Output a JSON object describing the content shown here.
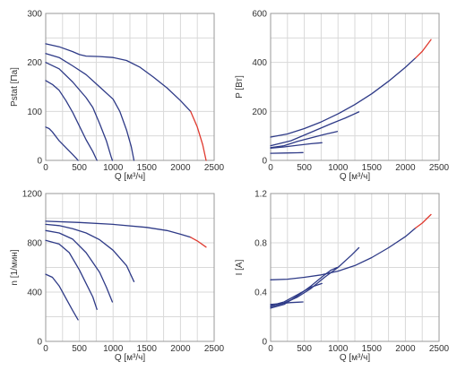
{
  "colors": {
    "curve": "#2e3a87",
    "limit": "#e03a2f",
    "grid": "#d9d9d9",
    "frame": "#9a9a9a"
  },
  "chart_data": [
    {
      "type": "line",
      "xlabel": "Q [м³/ч]",
      "ylabel": "Pstat [Па]",
      "xlim": [
        0,
        2500
      ],
      "ylim": [
        0,
        300
      ],
      "xticks": [
        0,
        500,
        1000,
        1500,
        2000,
        2500
      ],
      "yticks": [
        0,
        100,
        200,
        300
      ],
      "grid": true,
      "series": [
        {
          "points": [
            [
              0,
              238
            ],
            [
              200,
              232
            ],
            [
              400,
              222
            ],
            [
              500,
              216
            ],
            [
              600,
              213
            ],
            [
              800,
              212
            ],
            [
              1000,
              210
            ],
            [
              1200,
              204
            ],
            [
              1400,
              190
            ],
            [
              1600,
              170
            ],
            [
              1800,
              148
            ],
            [
              2000,
              122
            ],
            [
              2150,
              100
            ]
          ],
          "limit": [
            [
              2150,
              100
            ],
            [
              2250,
              68
            ],
            [
              2330,
              32
            ],
            [
              2380,
              0
            ]
          ]
        },
        {
          "points": [
            [
              0,
              218
            ],
            [
              200,
              210
            ],
            [
              400,
              193
            ],
            [
              600,
              175
            ],
            [
              800,
              150
            ],
            [
              1000,
              125
            ],
            [
              1100,
              100
            ],
            [
              1200,
              62
            ],
            [
              1270,
              28
            ],
            [
              1310,
              0
            ]
          ]
        },
        {
          "points": [
            [
              0,
              200
            ],
            [
              200,
              187
            ],
            [
              400,
              160
            ],
            [
              600,
              128
            ],
            [
              700,
              108
            ],
            [
              800,
              75
            ],
            [
              900,
              40
            ],
            [
              970,
              8
            ],
            [
              990,
              0
            ]
          ]
        },
        {
          "points": [
            [
              0,
              163
            ],
            [
              100,
              155
            ],
            [
              200,
              143
            ],
            [
              300,
              122
            ],
            [
              400,
              98
            ],
            [
              500,
              70
            ],
            [
              600,
              42
            ],
            [
              700,
              18
            ],
            [
              760,
              0
            ]
          ]
        },
        {
          "points": [
            [
              0,
              68
            ],
            [
              50,
              65
            ],
            [
              100,
              58
            ],
            [
              200,
              40
            ],
            [
              300,
              26
            ],
            [
              400,
              12
            ],
            [
              450,
              5
            ],
            [
              480,
              0
            ]
          ]
        }
      ]
    },
    {
      "type": "line",
      "xlabel": "Q [м³/ч]",
      "ylabel": "P [Вт]",
      "xlim": [
        0,
        2500
      ],
      "ylim": [
        0,
        600
      ],
      "xticks": [
        0,
        500,
        1000,
        1500,
        2000,
        2500
      ],
      "yticks": [
        0,
        200,
        400,
        600
      ],
      "grid": true,
      "series": [
        {
          "points": [
            [
              0,
              95
            ],
            [
              250,
              108
            ],
            [
              500,
              130
            ],
            [
              750,
              157
            ],
            [
              1000,
              190
            ],
            [
              1250,
              228
            ],
            [
              1500,
              272
            ],
            [
              1750,
              323
            ],
            [
              2000,
              380
            ],
            [
              2150,
              418
            ]
          ],
          "limit": [
            [
              2150,
              418
            ],
            [
              2250,
              445
            ],
            [
              2380,
              493
            ]
          ]
        },
        {
          "points": [
            [
              0,
              60
            ],
            [
              300,
              80
            ],
            [
              600,
              115
            ],
            [
              900,
              150
            ],
            [
              1100,
              172
            ],
            [
              1310,
              198
            ]
          ]
        },
        {
          "points": [
            [
              0,
              52
            ],
            [
              200,
              60
            ],
            [
              400,
              78
            ],
            [
              600,
              92
            ],
            [
              800,
              106
            ],
            [
              990,
              118
            ]
          ]
        },
        {
          "points": [
            [
              0,
              50
            ],
            [
              200,
              55
            ],
            [
              400,
              62
            ],
            [
              600,
              68
            ],
            [
              760,
              72
            ]
          ]
        },
        {
          "points": [
            [
              0,
              29
            ],
            [
              200,
              30
            ],
            [
              400,
              31
            ],
            [
              480,
              32
            ]
          ]
        }
      ]
    },
    {
      "type": "line",
      "xlabel": "Q [м³/ч]",
      "ylabel": "n [1/мин]",
      "xlim": [
        0,
        2500
      ],
      "ylim": [
        0,
        1200
      ],
      "xticks": [
        0,
        500,
        1000,
        1500,
        2000,
        2500
      ],
      "yticks": [
        0,
        400,
        800,
        1200
      ],
      "grid": true,
      "series": [
        {
          "points": [
            [
              0,
              975
            ],
            [
              500,
              965
            ],
            [
              1000,
              950
            ],
            [
              1500,
              925
            ],
            [
              1800,
              900
            ],
            [
              2000,
              870
            ],
            [
              2150,
              845
            ]
          ],
          "limit": [
            [
              2150,
              845
            ],
            [
              2250,
              815
            ],
            [
              2380,
              765
            ]
          ]
        },
        {
          "points": [
            [
              0,
              950
            ],
            [
              200,
              940
            ],
            [
              400,
              915
            ],
            [
              600,
              880
            ],
            [
              800,
              825
            ],
            [
              1000,
              740
            ],
            [
              1200,
              615
            ],
            [
              1310,
              485
            ]
          ]
        },
        {
          "points": [
            [
              0,
              900
            ],
            [
              200,
              880
            ],
            [
              400,
              830
            ],
            [
              600,
              720
            ],
            [
              800,
              560
            ],
            [
              900,
              440
            ],
            [
              990,
              320
            ]
          ]
        },
        {
          "points": [
            [
              0,
              820
            ],
            [
              200,
              790
            ],
            [
              350,
              720
            ],
            [
              500,
              580
            ],
            [
              600,
              470
            ],
            [
              700,
              360
            ],
            [
              760,
              260
            ]
          ]
        },
        {
          "points": [
            [
              0,
              545
            ],
            [
              100,
              520
            ],
            [
              200,
              450
            ],
            [
              300,
              350
            ],
            [
              400,
              250
            ],
            [
              480,
              175
            ]
          ]
        }
      ]
    },
    {
      "type": "line",
      "xlabel": "Q [м³/ч]",
      "ylabel": "I [A]",
      "xlim": [
        0,
        2500
      ],
      "ylim": [
        0,
        1.2
      ],
      "xticks": [
        0,
        500,
        1000,
        1500,
        2000,
        2500
      ],
      "yticks": [
        "0",
        "0.4",
        "0.8",
        "1.2"
      ],
      "grid": true,
      "series": [
        {
          "points": [
            [
              0,
              0.5
            ],
            [
              250,
              0.505
            ],
            [
              500,
              0.52
            ],
            [
              750,
              0.54
            ],
            [
              1000,
              0.57
            ],
            [
              1250,
              0.615
            ],
            [
              1500,
              0.68
            ],
            [
              1750,
              0.76
            ],
            [
              2000,
              0.85
            ],
            [
              2150,
              0.92
            ]
          ],
          "limit": [
            [
              2150,
              0.92
            ],
            [
              2250,
              0.96
            ],
            [
              2380,
              1.03
            ]
          ]
        },
        {
          "points": [
            [
              0,
              0.28
            ],
            [
              200,
              0.31
            ],
            [
              400,
              0.36
            ],
            [
              600,
              0.43
            ],
            [
              800,
              0.52
            ],
            [
              1000,
              0.6
            ],
            [
              1200,
              0.7
            ],
            [
              1310,
              0.76
            ]
          ]
        },
        {
          "points": [
            [
              0,
              0.27
            ],
            [
              200,
              0.3
            ],
            [
              400,
              0.37
            ],
            [
              600,
              0.45
            ],
            [
              800,
              0.54
            ],
            [
              900,
              0.58
            ],
            [
              990,
              0.6
            ]
          ]
        },
        {
          "points": [
            [
              0,
              0.29
            ],
            [
              200,
              0.32
            ],
            [
              400,
              0.38
            ],
            [
              600,
              0.44
            ],
            [
              760,
              0.47
            ]
          ]
        },
        {
          "points": [
            [
              0,
              0.3
            ],
            [
              100,
              0.305
            ],
            [
              200,
              0.31
            ],
            [
              300,
              0.315
            ],
            [
              400,
              0.318
            ],
            [
              480,
              0.32
            ]
          ]
        }
      ]
    }
  ]
}
